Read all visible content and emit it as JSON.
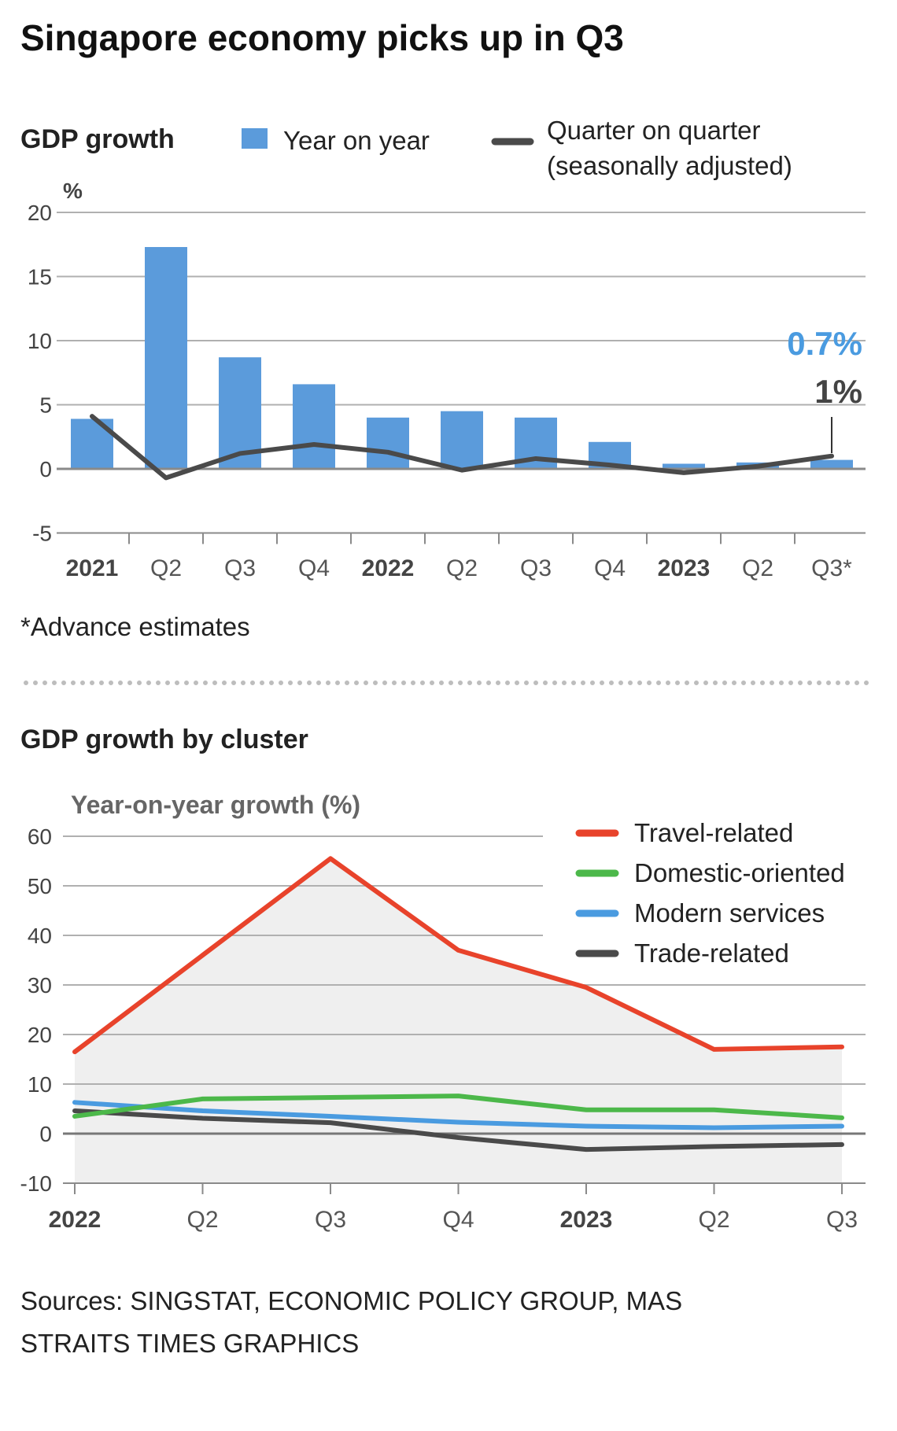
{
  "title": "Singapore economy picks up in Q3",
  "gdp_section": {
    "heading": "GDP growth",
    "unit": "%",
    "legend_yoy": "Year on year",
    "legend_qoq_line1": "Quarter on quarter",
    "legend_qoq_line2": "(seasonally adjusted)",
    "callout_yoy": "0.7%",
    "callout_qoq": "1%",
    "footnote": "*Advance estimates"
  },
  "cluster_section": {
    "heading": "GDP growth by cluster",
    "ylabel": "Year-on-year growth (%)"
  },
  "sources": {
    "line1": "Sources: SINGSTAT, ECONOMIC POLICY GROUP, MAS",
    "line2": "STRAITS TIMES GRAPHICS"
  },
  "colors": {
    "bar": "#5b9bdb",
    "qoq_line": "#4a4a4a",
    "travel": "#e8432b",
    "domestic": "#4cb84a",
    "modern": "#4a9be0",
    "trade": "#4a4a4a",
    "shade": "#efefef",
    "grid": "#b0b0b0",
    "callout_blue": "#4a9be0"
  },
  "chart_data": [
    {
      "type": "bar",
      "title": "GDP growth",
      "ylabel": "%",
      "ylim": [
        -5,
        20
      ],
      "yticks": [
        20,
        15,
        10,
        5,
        0,
        -5
      ],
      "categories": [
        "2021",
        "Q2",
        "Q3",
        "Q4",
        "2022",
        "Q2",
        "Q3",
        "Q4",
        "2023",
        "Q2",
        "Q3*"
      ],
      "bold_categories": [
        0,
        4,
        8
      ],
      "series": [
        {
          "name": "Year on year",
          "kind": "bar",
          "values": [
            3.9,
            17.3,
            8.7,
            6.6,
            4.0,
            4.5,
            4.0,
            2.1,
            0.4,
            0.5,
            0.7
          ]
        },
        {
          "name": "Quarter on quarter (seasonally adjusted)",
          "kind": "line",
          "values": [
            4.1,
            -0.7,
            1.2,
            1.9,
            1.3,
            -0.1,
            0.8,
            0.3,
            -0.3,
            0.2,
            1.0
          ]
        }
      ]
    },
    {
      "type": "line",
      "title": "GDP growth by cluster",
      "ylabel": "Year-on-year growth (%)",
      "ylim": [
        -10,
        60
      ],
      "yticks": [
        60,
        50,
        40,
        30,
        20,
        10,
        0,
        -10
      ],
      "categories": [
        "2022",
        "Q2",
        "Q3",
        "Q4",
        "2023",
        "Q2",
        "Q3"
      ],
      "bold_categories": [
        0,
        4
      ],
      "series": [
        {
          "name": "Travel-related",
          "values": [
            16.5,
            36.0,
            55.5,
            37.0,
            29.5,
            17.0,
            17.5
          ]
        },
        {
          "name": "Domestic-oriented",
          "values": [
            3.5,
            7.0,
            7.3,
            7.6,
            4.8,
            4.8,
            3.2
          ]
        },
        {
          "name": "Modern services",
          "values": [
            6.3,
            4.6,
            3.5,
            2.3,
            1.5,
            1.2,
            1.5
          ]
        },
        {
          "name": "Trade-related",
          "values": [
            4.6,
            3.1,
            2.2,
            -0.8,
            -3.2,
            -2.6,
            -2.2
          ]
        }
      ]
    }
  ]
}
